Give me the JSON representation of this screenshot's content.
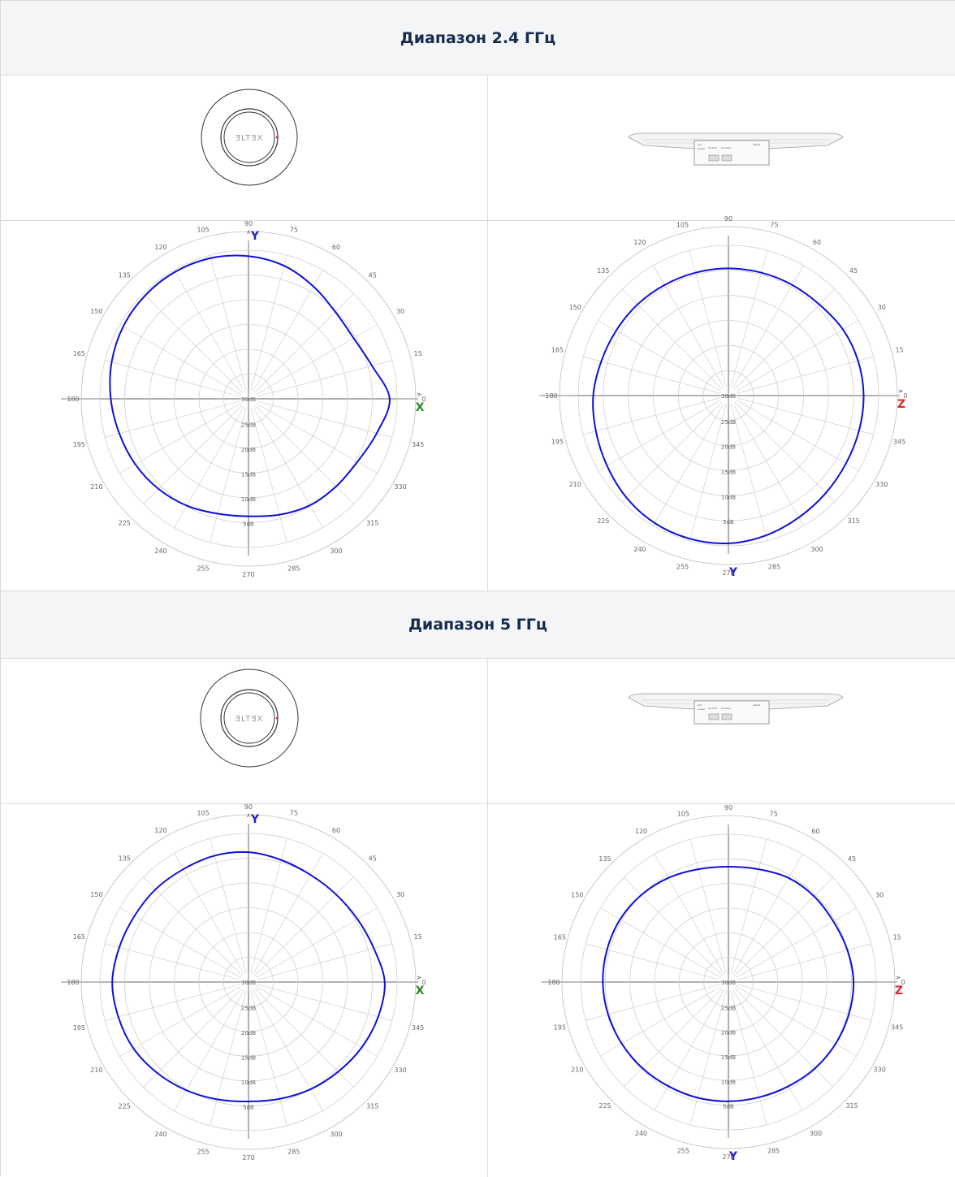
{
  "sections": [
    {
      "title": "Диапазон 2.4 ГГц",
      "device_logo": "ƎLTƎX",
      "port_labels": [
        "ant",
        "power",
        "1G PoE",
        "Console",
        "status"
      ],
      "charts": [
        {
          "type": "polar",
          "angle_ticks": [
            "0",
            "15",
            "30",
            "45",
            "60",
            "75",
            "90",
            "105",
            "120",
            "135",
            "150",
            "165",
            "180",
            "195",
            "210",
            "225",
            "240",
            "255",
            "270",
            "285",
            "300",
            "315",
            "330",
            "345"
          ],
          "radial_labels": [
            "30dB",
            "25dB",
            "20dB",
            "15dB",
            "10dB",
            "5dB"
          ],
          "axis_right": "X",
          "axis_top": "Y",
          "axis_bottom": "",
          "colors": {
            "trace": "#1010d8",
            "axis_right": "#2a8a2a",
            "axis_top": "#2222cc"
          },
          "chart_data": {
            "type": "polar",
            "units": "dB",
            "r_range": [
              -30,
              0
            ],
            "angles": [
              0,
              15,
              30,
              45,
              60,
              75,
              90,
              105,
              120,
              135,
              150,
              165,
              180,
              195,
              210,
              225,
              240,
              255,
              270,
              285,
              300,
              315,
              330,
              345
            ],
            "values": [
              -1.5,
              -4.2,
              -5.5,
              -5.2,
              -3.8,
              -2.2,
              -1.2,
              -0.6,
              -0.4,
              -0.5,
              -0.8,
              -1.4,
              -2.2,
              -3.0,
              -3.6,
              -4.3,
              -5.1,
              -6.0,
              -6.3,
              -5.8,
              -5.2,
              -5.0,
              -4.6,
              -3.2
            ]
          }
        },
        {
          "type": "polar",
          "angle_ticks": [
            "0",
            "15",
            "30",
            "45",
            "60",
            "75",
            "90",
            "105",
            "120",
            "135",
            "150",
            "165",
            "180",
            "195",
            "210",
            "225",
            "240",
            "255",
            "270",
            "285",
            "300",
            "315",
            "330",
            "345"
          ],
          "radial_labels": [
            "30dB",
            "25dB",
            "20dB",
            "15dB",
            "10dB",
            "5dB"
          ],
          "axis_right": "Z",
          "axis_top": "",
          "axis_bottom": "Y",
          "colors": {
            "trace": "#1010d8",
            "axis_right": "#d42a2a",
            "axis_bottom": "#2222cc"
          },
          "chart_data": {
            "type": "polar",
            "units": "dB",
            "r_range": [
              -30,
              0
            ],
            "angles": [
              0,
              15,
              30,
              45,
              60,
              75,
              90,
              105,
              120,
              135,
              150,
              165,
              180,
              195,
              210,
              225,
              240,
              255,
              270,
              285,
              300,
              315,
              330,
              345
            ],
            "values": [
              -3.0,
              -3.2,
              -3.6,
              -4.3,
              -4.5,
              -4.6,
              -4.6,
              -4.6,
              -4.5,
              -4.3,
              -4.1,
              -3.7,
              -3.0,
              -2.6,
              -2.0,
              -1.2,
              -0.6,
              -0.4,
              -0.5,
              -1.1,
              -1.9,
              -2.5,
              -2.9,
              -3.0
            ]
          }
        }
      ]
    },
    {
      "title": "Диапазон 5 ГГц",
      "device_logo": "ƎLTƎX",
      "port_labels": [
        "ant",
        "power",
        "1G PoE",
        "Console",
        "status"
      ],
      "charts": [
        {
          "type": "polar",
          "angle_ticks": [
            "0",
            "15",
            "30",
            "45",
            "60",
            "75",
            "90",
            "105",
            "120",
            "135",
            "150",
            "165",
            "180",
            "195",
            "210",
            "225",
            "240",
            "255",
            "270",
            "285",
            "300",
            "315",
            "330",
            "345"
          ],
          "radial_labels": [
            "30dB",
            "25dB",
            "20dB",
            "15dB",
            "10dB",
            "5dB"
          ],
          "axis_right": "X",
          "axis_top": "Y",
          "axis_bottom": "",
          "colors": {
            "trace": "#1010d8",
            "axis_right": "#2a8a2a",
            "axis_top": "#2222cc"
          },
          "chart_data": {
            "type": "polar",
            "units": "dB",
            "r_range": [
              -30,
              0
            ],
            "angles": [
              0,
              15,
              30,
              45,
              60,
              75,
              90,
              105,
              120,
              135,
              150,
              165,
              180,
              195,
              210,
              225,
              240,
              255,
              270,
              285,
              300,
              315,
              330,
              345
            ],
            "values": [
              -2.5,
              -3.8,
              -4.6,
              -5.0,
              -5.0,
              -4.5,
              -3.8,
              -3.6,
              -3.7,
              -3.5,
              -3.4,
              -3.0,
              -2.5,
              -2.8,
              -3.2,
              -4.0,
              -4.8,
              -5.5,
              -5.9,
              -5.6,
              -5.0,
              -4.4,
              -3.6,
              -2.9
            ]
          }
        },
        {
          "type": "polar",
          "angle_ticks": [
            "0",
            "15",
            "30",
            "45",
            "60",
            "75",
            "90",
            "105",
            "120",
            "135",
            "150",
            "165",
            "180",
            "195",
            "210",
            "225",
            "240",
            "255",
            "270",
            "285",
            "300",
            "315",
            "330",
            "345"
          ],
          "radial_labels": [
            "30dB",
            "25dB",
            "20dB",
            "15dB",
            "10dB",
            "5dB"
          ],
          "axis_right": "Z",
          "axis_top": "",
          "axis_bottom": "Y",
          "colors": {
            "trace": "#1010d8",
            "axis_right": "#d42a2a",
            "axis_bottom": "#2222cc"
          },
          "chart_data": {
            "type": "polar",
            "units": "dB",
            "r_range": [
              -30,
              0
            ],
            "angles": [
              0,
              15,
              30,
              45,
              60,
              75,
              90,
              105,
              120,
              135,
              150,
              165,
              180,
              195,
              210,
              225,
              240,
              255,
              270,
              285,
              300,
              315,
              330,
              345
            ],
            "values": [
              -4.6,
              -5.0,
              -5.4,
              -5.4,
              -5.6,
              -6.3,
              -6.6,
              -6.3,
              -5.6,
              -5.0,
              -4.6,
              -4.5,
              -4.5,
              -4.7,
              -5.0,
              -5.3,
              -5.6,
              -5.7,
              -5.8,
              -5.8,
              -5.6,
              -5.2,
              -4.9,
              -4.7
            ]
          }
        }
      ]
    }
  ]
}
